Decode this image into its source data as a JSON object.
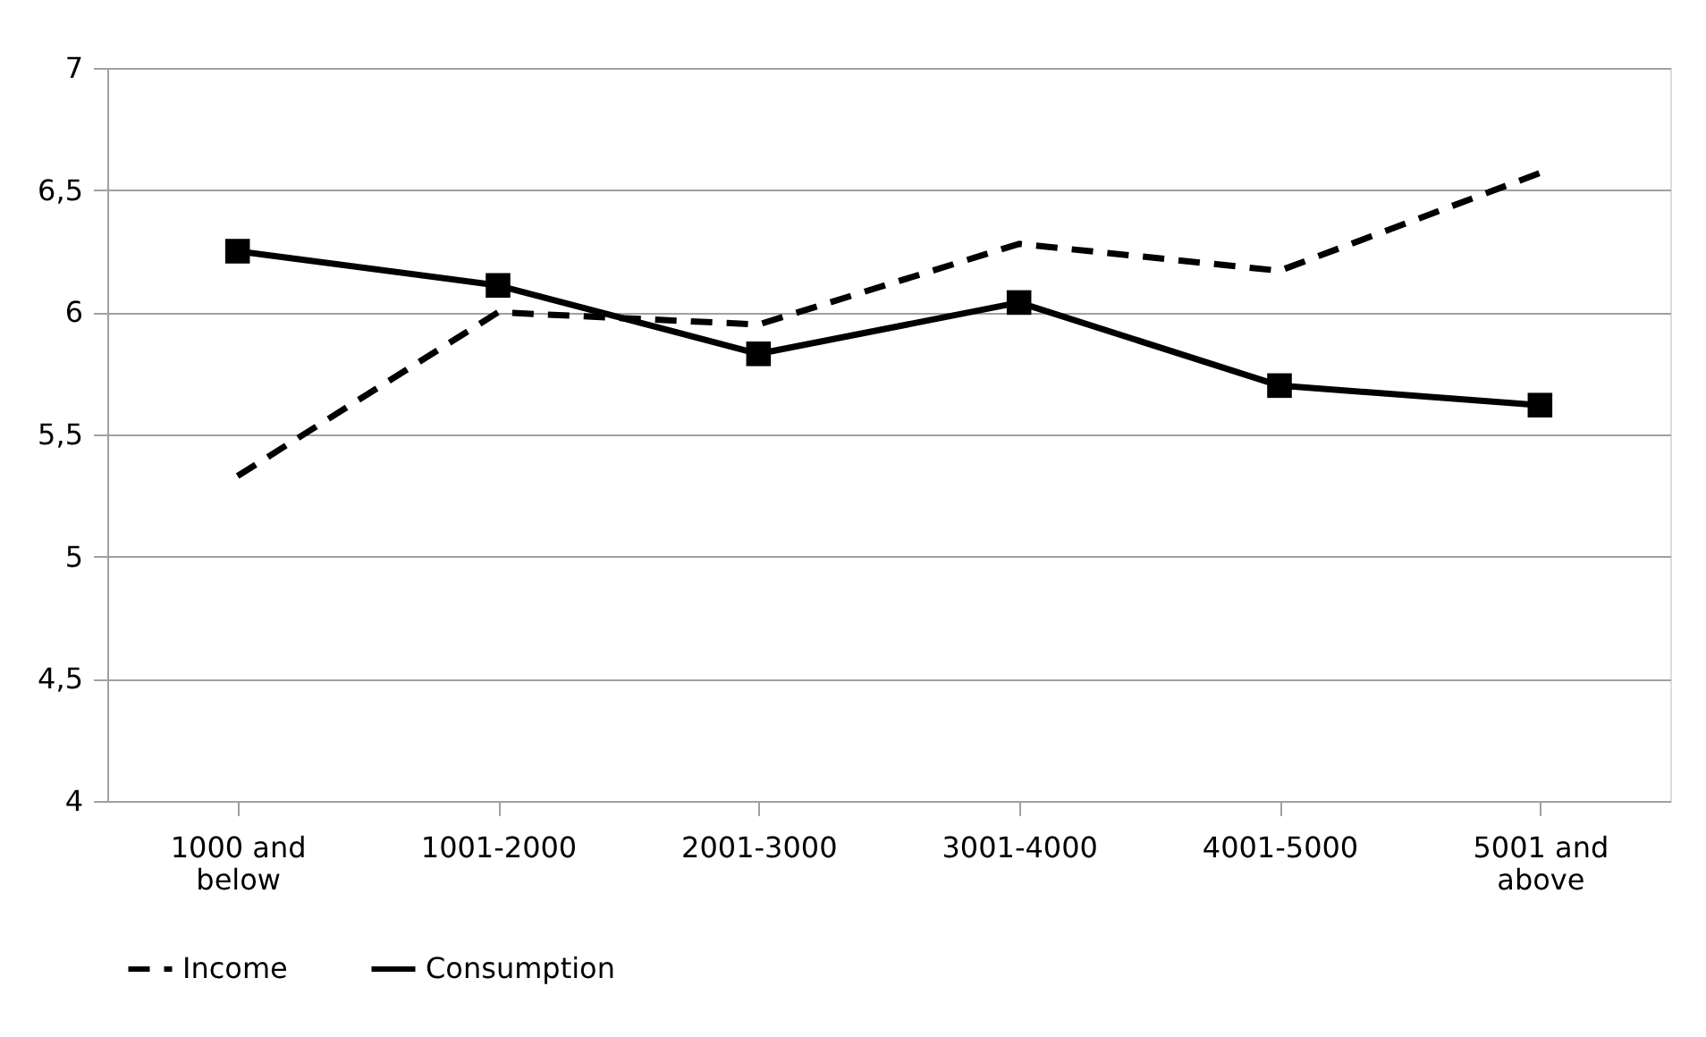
{
  "chart_data": {
    "type": "line",
    "categories": [
      "1000 and below",
      "1001-2000",
      "2001-3000",
      "3001-4000",
      "4001-5000",
      "5001 and above"
    ],
    "series": [
      {
        "name": "Income",
        "color": "#000000",
        "line_style": "dashed",
        "marker": "none",
        "values": [
          5.33,
          6.0,
          5.95,
          6.28,
          6.17,
          6.57
        ]
      },
      {
        "name": "Consumption",
        "color": "#000000",
        "line_style": "solid",
        "marker": "square",
        "values": [
          6.25,
          6.11,
          5.83,
          6.04,
          5.7,
          5.62
        ]
      }
    ],
    "ylim": [
      4,
      7
    ],
    "yticks": [
      4,
      {
        "value": 4.5,
        "label": "4,5"
      },
      5,
      {
        "value": 5.5,
        "label": "5,5"
      },
      6,
      {
        "value": 6.5,
        "label": "6,5"
      },
      7
    ],
    "grid": "y",
    "legend": "bottom"
  }
}
